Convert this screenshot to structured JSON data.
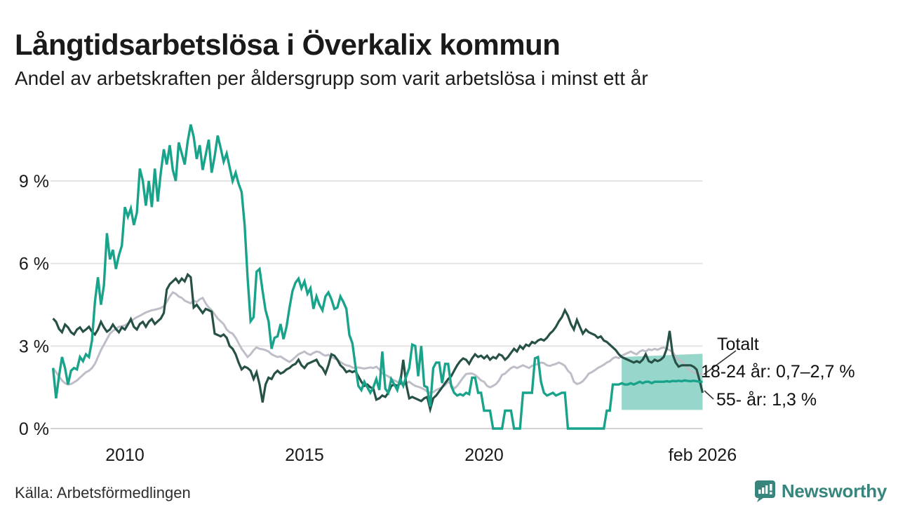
{
  "header": {
    "title": "Långtidsarbetslösa i Överkalix kommun",
    "subtitle": "Andel av arbetskraften per åldersgrupp som varit arbetslösa i minst ett år"
  },
  "footer": {
    "source": "Källa: Arbetsförmedlingen",
    "brand": "Newsworthy"
  },
  "annotations": {
    "totalt": "Totalt",
    "youth": "18-24 år: 0,7–2,7 %",
    "senior": "55- år: 1,3 %"
  },
  "colors": {
    "teal": "#19a38b",
    "dark_green": "#275047",
    "gray": "#bebec8",
    "band_fill": "#19a38b",
    "band_opacity": 0.45,
    "grid": "#e4e4e4",
    "zero_line": "#d2d2d2",
    "text": "#1a1a1a",
    "leader": "#333333",
    "logo": "#37857c"
  },
  "chart_data": {
    "type": "line",
    "title": "Långtidsarbetslösa i Överkalix kommun",
    "subtitle": "Andel av arbetskraften per åldersgrupp som varit arbetslösa i minst ett år",
    "xlabel": "",
    "ylabel": "",
    "ylim": [
      0,
      11.5
    ],
    "xlim": [
      2008.0,
      2026.17
    ],
    "grid": "horizontal",
    "legend_position": "direct-labels-right",
    "x_unit": "monthly, 2008-01 to 2026-02",
    "x_start": 2008.0,
    "x_step": 0.0833333,
    "y_ticks": [
      {
        "value": 0,
        "label": "0 %"
      },
      {
        "value": 3,
        "label": "3 %"
      },
      {
        "value": 6,
        "label": "6 %"
      },
      {
        "value": 9,
        "label": "9 %"
      }
    ],
    "x_ticks": [
      {
        "year": 2010,
        "label": "2010"
      },
      {
        "year": 2015,
        "label": "2015"
      },
      {
        "year": 2020,
        "label": "2020"
      },
      {
        "year": 2026.083,
        "label": "feb 2026"
      }
    ],
    "series": [
      {
        "name": "Totalt",
        "color": "#bebec8",
        "width": 3,
        "end_value": 2.0,
        "values": [
          2.2,
          2.05,
          1.9,
          1.75,
          1.65,
          1.6,
          1.62,
          1.68,
          1.75,
          1.85,
          1.95,
          2.05,
          2.1,
          2.2,
          2.35,
          2.6,
          2.85,
          3.05,
          3.25,
          3.45,
          3.55,
          3.62,
          3.7,
          3.72,
          3.75,
          3.82,
          3.9,
          3.98,
          4.05,
          4.1,
          4.16,
          4.22,
          4.26,
          4.3,
          4.32,
          4.35,
          4.38,
          4.45,
          4.6,
          4.8,
          4.95,
          4.9,
          4.8,
          4.75,
          4.65,
          4.6,
          4.55,
          4.65,
          4.6,
          4.7,
          4.75,
          4.55,
          4.4,
          4.3,
          4.15,
          4.0,
          3.9,
          3.8,
          3.6,
          3.5,
          3.45,
          3.3,
          3.1,
          2.9,
          2.75,
          2.6,
          2.7,
          2.85,
          2.95,
          2.9,
          2.88,
          2.85,
          2.8,
          2.7,
          2.65,
          2.6,
          2.62,
          2.55,
          2.48,
          2.42,
          2.5,
          2.6,
          2.7,
          2.75,
          2.8,
          2.72,
          2.68,
          2.75,
          2.8,
          2.78,
          2.7,
          2.65,
          2.68,
          2.6,
          2.55,
          2.5,
          2.42,
          2.35,
          2.3,
          2.28,
          2.22,
          2.2,
          2.22,
          2.2,
          2.18,
          2.2,
          2.22,
          2.2,
          2.25,
          2.15,
          2.0,
          1.95,
          1.9,
          1.8,
          1.75,
          1.7,
          1.62,
          1.58,
          1.65,
          1.7,
          1.62,
          1.55,
          1.52,
          1.48,
          1.42,
          1.35,
          1.3,
          1.32,
          1.4,
          1.45,
          1.5,
          1.58,
          1.7,
          1.6,
          1.45,
          1.55,
          1.7,
          1.85,
          1.98,
          2.0,
          2.0,
          1.95,
          1.85,
          1.75,
          1.7,
          1.55,
          1.5,
          1.55,
          1.62,
          1.75,
          1.95,
          2.0,
          2.1,
          2.2,
          2.25,
          2.2,
          2.25,
          2.3,
          2.25,
          2.2,
          2.28,
          2.32,
          2.35,
          2.4,
          2.38,
          2.3,
          2.28,
          2.32,
          2.35,
          2.4,
          2.35,
          2.28,
          2.1,
          2.0,
          1.7,
          1.62,
          1.65,
          1.72,
          1.85,
          2.0,
          2.05,
          2.12,
          2.2,
          2.26,
          2.32,
          2.4,
          2.45,
          2.55,
          2.6,
          2.56,
          2.65,
          2.7,
          2.75,
          2.8,
          2.74,
          2.7,
          2.8,
          2.85,
          2.8,
          2.88,
          2.85,
          2.9,
          2.86,
          2.92,
          2.95,
          2.9,
          2.85,
          2.78,
          2.62,
          2.5,
          2.44,
          2.32,
          2.2,
          2.1,
          2.05,
          2.0,
          1.96,
          2.0
        ]
      },
      {
        "name": "55- år",
        "color": "#275047",
        "width": 3.2,
        "end_value": 1.3,
        "values": [
          4.0,
          3.88,
          3.62,
          3.5,
          3.78,
          3.68,
          3.5,
          3.42,
          3.6,
          3.68,
          3.52,
          3.6,
          3.7,
          3.52,
          3.42,
          3.6,
          3.88,
          3.68,
          3.52,
          3.6,
          3.78,
          3.62,
          3.5,
          3.68,
          3.6,
          3.78,
          3.98,
          3.7,
          3.6,
          3.8,
          3.88,
          3.7,
          3.88,
          3.98,
          3.8,
          3.9,
          4.0,
          4.2,
          5.05,
          5.25,
          5.35,
          5.45,
          5.3,
          5.45,
          5.35,
          5.6,
          5.5,
          4.4,
          4.5,
          4.35,
          4.2,
          4.35,
          4.3,
          4.25,
          3.45,
          3.4,
          3.35,
          3.42,
          3.3,
          3.0,
          2.9,
          2.7,
          2.4,
          2.15,
          2.25,
          2.2,
          2.1,
          1.8,
          2.05,
          1.6,
          0.95,
          1.6,
          1.85,
          1.8,
          2.0,
          2.1,
          2.0,
          2.05,
          2.15,
          2.2,
          2.3,
          2.35,
          2.5,
          2.3,
          2.2,
          2.35,
          2.4,
          2.45,
          2.5,
          2.3,
          2.2,
          2.0,
          2.3,
          2.7,
          2.65,
          2.5,
          2.3,
          2.2,
          2.05,
          2.1,
          2.05,
          2.1,
          1.9,
          1.7,
          1.55,
          1.6,
          1.5,
          1.45,
          1.05,
          1.1,
          1.2,
          1.15,
          1.3,
          1.55,
          1.6,
          1.55,
          1.65,
          2.5,
          1.6,
          1.1,
          1.15,
          1.1,
          1.05,
          1.0,
          1.1,
          1.15,
          0.7,
          1.1,
          1.2,
          1.35,
          1.5,
          1.65,
          1.8,
          1.9,
          2.1,
          2.3,
          2.45,
          2.55,
          2.5,
          2.35,
          2.55,
          2.7,
          2.6,
          2.65,
          2.55,
          2.65,
          2.5,
          2.6,
          2.55,
          2.7,
          2.65,
          2.5,
          2.6,
          2.75,
          2.9,
          2.8,
          3.0,
          2.9,
          3.05,
          3.0,
          3.15,
          3.1,
          3.2,
          3.25,
          3.2,
          3.3,
          3.45,
          3.55,
          3.7,
          3.9,
          4.05,
          4.3,
          4.1,
          3.8,
          3.6,
          3.95,
          3.7,
          3.45,
          3.6,
          3.5,
          3.45,
          3.4,
          3.3,
          3.35,
          3.2,
          3.15,
          3.05,
          2.95,
          2.85,
          2.7,
          2.6,
          2.55,
          2.5,
          2.45,
          2.4,
          2.45,
          2.4,
          2.5,
          2.7,
          2.45,
          2.4,
          2.5,
          2.45,
          2.5,
          2.6,
          2.9,
          3.55,
          2.7,
          2.4,
          2.25,
          2.3,
          2.3,
          2.3,
          2.3,
          2.25,
          2.15,
          1.75,
          1.3
        ]
      },
      {
        "name": "18-24 år",
        "color": "#19a38b",
        "width": 3.4,
        "end_value": 1.7,
        "end_range": [
          0.7,
          2.7
        ],
        "values": [
          2.2,
          1.1,
          1.9,
          2.6,
          2.2,
          1.6,
          2.1,
          2.2,
          2.15,
          2.6,
          2.45,
          2.7,
          2.6,
          3.2,
          4.6,
          5.5,
          4.5,
          5.2,
          7.1,
          6.15,
          6.5,
          5.8,
          6.3,
          6.65,
          8.05,
          7.7,
          8.0,
          7.4,
          7.85,
          9.45,
          9.0,
          8.1,
          9.0,
          8.05,
          9.45,
          8.25,
          9.3,
          10.15,
          9.6,
          10.3,
          9.4,
          9.0,
          10.4,
          10.0,
          9.6,
          10.45,
          11.05,
          10.6,
          9.8,
          10.3,
          9.4,
          9.95,
          10.5,
          9.3,
          9.9,
          10.65,
          10.2,
          9.7,
          10.0,
          9.5,
          9.0,
          9.3,
          8.9,
          8.6,
          7.4,
          5.5,
          3.9,
          4.05,
          5.7,
          5.8,
          5.0,
          4.3,
          3.9,
          2.9,
          3.3,
          3.35,
          3.8,
          3.25,
          3.7,
          4.4,
          5.0,
          5.3,
          5.45,
          5.1,
          5.35,
          4.9,
          5.1,
          4.35,
          4.8,
          4.5,
          4.3,
          4.8,
          4.95,
          4.7,
          4.35,
          4.4,
          4.8,
          4.6,
          4.35,
          3.4,
          3.1,
          2.3,
          1.55,
          1.4,
          1.7,
          1.5,
          1.3,
          1.5,
          1.8,
          1.4,
          2.8,
          1.45,
          1.3,
          1.8,
          1.6,
          1.4,
          1.8,
          1.55,
          1.9,
          2.2,
          3.05,
          3.0,
          1.9,
          3.0,
          1.55,
          1.5,
          0.8,
          2.2,
          2.4,
          2.4,
          1.65,
          2.35,
          2.35,
          1.55,
          1.3,
          1.2,
          1.25,
          1.2,
          1.3,
          1.25,
          1.85,
          1.85,
          1.3,
          1.3,
          0.65,
          0.65,
          0.65,
          0,
          0,
          0,
          0,
          0.65,
          0.65,
          0.65,
          0,
          0,
          0,
          1.3,
          1.3,
          1.3,
          1.3,
          2.55,
          2.6,
          1.7,
          1.3,
          1.2,
          1.25,
          1.3,
          1.2,
          1.25,
          1.3,
          1.3,
          0,
          0,
          0,
          0,
          0,
          0,
          0,
          0,
          0,
          0,
          0,
          0,
          0,
          0.65,
          0.65,
          1.6,
          1.6,
          1.6,
          1.65,
          1.6,
          1.6,
          1.65,
          1.6,
          1.65,
          1.7,
          1.65,
          1.7,
          1.7,
          1.65,
          1.7,
          1.7,
          1.7,
          1.7,
          1.72,
          1.7,
          1.73,
          1.72,
          1.74,
          1.72,
          1.75,
          1.73,
          1.72,
          1.74,
          1.72,
          1.7,
          1.7
        ]
      }
    ],
    "uncertainty_band": {
      "series": "18-24 år",
      "x_from": 2023.83,
      "x_to": 2026.083,
      "low": 0.68,
      "high_start": 2.6,
      "high_end": 2.72
    },
    "direct_labels": [
      {
        "text": "Totalt",
        "points_to_value": 2.0
      },
      {
        "text": "18-24 år: 0,7–2,7 %",
        "points_to_value": 1.7
      },
      {
        "text": "55- år: 1,3 %",
        "points_to_value": 1.3
      }
    ]
  }
}
